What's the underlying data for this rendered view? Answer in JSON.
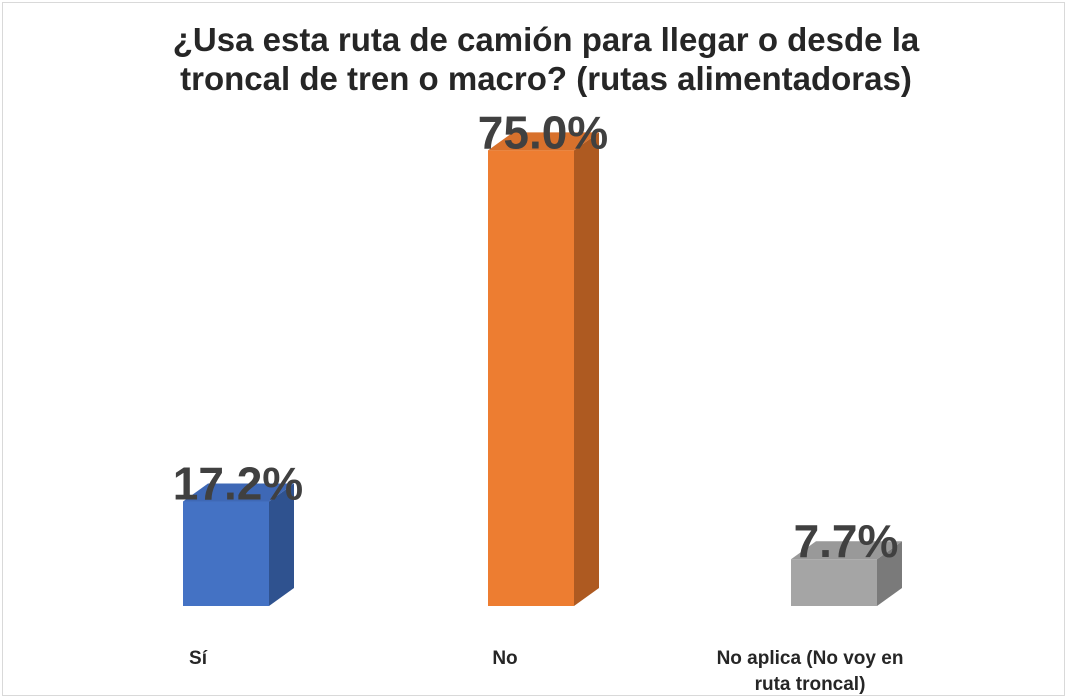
{
  "chart_data": {
    "type": "bar",
    "title_lines": [
      "¿Usa esta ruta de camión para llegar o desde la",
      "troncal de tren o macro? (rutas alimentadoras)"
    ],
    "categories": [
      "Sí",
      "No",
      "No aplica (No voy en ruta troncal)"
    ],
    "category_label_lines": [
      [
        "Sí"
      ],
      [
        "No"
      ],
      [
        "No aplica (No voy en",
        "ruta troncal)"
      ]
    ],
    "values": [
      17.2,
      75.0,
      7.7
    ],
    "value_labels": [
      "17.2%",
      "75.0%",
      "7.7%"
    ],
    "unit": "%",
    "ylim": [
      0,
      80
    ],
    "bar_style": "3d",
    "colors": [
      {
        "front": "#4472c4",
        "top": "#3e68b6",
        "side": "#2f528f"
      },
      {
        "front": "#ed7d31",
        "top": "#d8712c",
        "side": "#ae5a21"
      },
      {
        "front": "#a5a5a5",
        "top": "#999999",
        "side": "#7a7a7a"
      }
    ],
    "grid": false,
    "legend": "none"
  }
}
